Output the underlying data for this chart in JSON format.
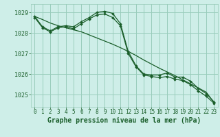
{
  "background_color": "#ceeee8",
  "plot_bg_color": "#ceeee8",
  "grid_color": "#99ccbb",
  "line_color": "#1a5e2a",
  "marker_color": "#1a5e2a",
  "xlabel": "Graphe pression niveau de la mer (hPa)",
  "xlabel_fontsize": 7,
  "xlabel_color": "#1a5e2a",
  "xlim": [
    -0.5,
    23.5
  ],
  "ylim": [
    1024.4,
    1029.4
  ],
  "yticks": [
    1025,
    1026,
    1027,
    1028,
    1029
  ],
  "xticks": [
    0,
    1,
    2,
    3,
    4,
    5,
    6,
    7,
    8,
    9,
    10,
    11,
    12,
    13,
    14,
    15,
    16,
    17,
    18,
    19,
    20,
    21,
    22,
    23
  ],
  "series1_x": [
    0,
    1,
    2,
    3,
    4,
    5,
    6,
    7,
    8,
    9,
    10,
    11,
    12,
    13,
    14,
    15,
    16,
    17,
    18,
    19,
    20,
    21,
    22,
    23
  ],
  "series1_y": [
    1028.8,
    1028.3,
    1028.1,
    1028.3,
    1028.35,
    1028.3,
    1028.55,
    1028.75,
    1029.0,
    1029.05,
    1028.95,
    1028.45,
    1027.1,
    1026.4,
    1026.0,
    1025.95,
    1025.95,
    1026.05,
    1025.85,
    1025.85,
    1025.65,
    1025.3,
    1025.05,
    1024.65
  ],
  "series2_x": [
    0,
    1,
    2,
    3,
    4,
    5,
    6,
    7,
    8,
    9,
    10,
    11,
    12,
    13,
    14,
    15,
    16,
    17,
    18,
    19,
    20,
    21,
    22,
    23
  ],
  "series2_y": [
    1028.75,
    1028.25,
    1028.05,
    1028.25,
    1028.3,
    1028.2,
    1028.45,
    1028.68,
    1028.88,
    1028.92,
    1028.75,
    1028.35,
    1027.0,
    1026.35,
    1025.95,
    1025.88,
    1025.82,
    1025.88,
    1025.75,
    1025.68,
    1025.48,
    1025.18,
    1024.92,
    1024.58
  ],
  "series3_x": [
    0,
    1,
    2,
    3,
    4,
    5,
    6,
    7,
    8,
    9,
    10,
    11,
    12,
    13,
    14,
    15,
    16,
    17,
    18,
    19,
    20,
    21,
    22,
    23
  ],
  "series3_y": [
    1028.8,
    1028.65,
    1028.48,
    1028.35,
    1028.25,
    1028.15,
    1028.05,
    1027.9,
    1027.75,
    1027.6,
    1027.45,
    1027.28,
    1027.1,
    1026.9,
    1026.68,
    1026.48,
    1026.28,
    1026.1,
    1025.92,
    1025.72,
    1025.52,
    1025.32,
    1025.12,
    1024.62
  ],
  "tick_fontsize": 5.5,
  "tick_color": "#1a5e2a",
  "ytick_fontsize": 6
}
